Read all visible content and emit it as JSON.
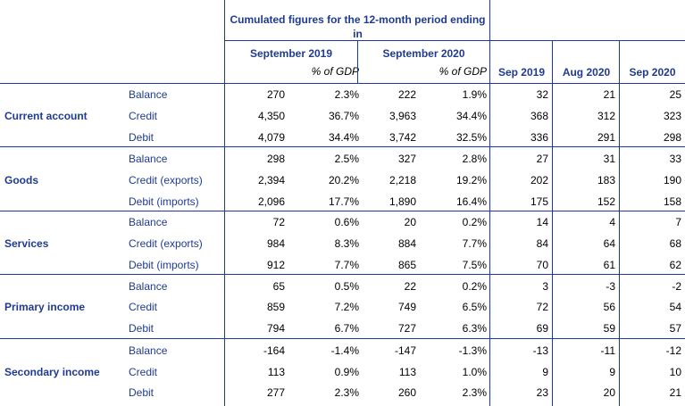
{
  "header": {
    "cumulated_title": "Cumulated figures for the 12-month period ending in",
    "periods": [
      "September 2019",
      "September 2020"
    ],
    "pct_label": "% of GDP",
    "months": [
      "Sep 2019",
      "Aug 2020",
      "Sep 2020"
    ]
  },
  "sections": [
    {
      "name": "Current account",
      "rows": [
        {
          "label": "Balance",
          "v19": "270",
          "p19": "2.3%",
          "v20": "222",
          "p20": "1.9%",
          "m1": "32",
          "m2": "21",
          "m3": "25"
        },
        {
          "label": "Credit",
          "v19": "4,350",
          "p19": "36.7%",
          "v20": "3,963",
          "p20": "34.4%",
          "m1": "368",
          "m2": "312",
          "m3": "323"
        },
        {
          "label": "Debit",
          "v19": "4,079",
          "p19": "34.4%",
          "v20": "3,742",
          "p20": "32.5%",
          "m1": "336",
          "m2": "291",
          "m3": "298"
        }
      ]
    },
    {
      "name": "Goods",
      "rows": [
        {
          "label": "Balance",
          "v19": "298",
          "p19": "2.5%",
          "v20": "327",
          "p20": "2.8%",
          "m1": "27",
          "m2": "31",
          "m3": "33"
        },
        {
          "label": "Credit (exports)",
          "v19": "2,394",
          "p19": "20.2%",
          "v20": "2,218",
          "p20": "19.2%",
          "m1": "202",
          "m2": "183",
          "m3": "190"
        },
        {
          "label": "Debit (imports)",
          "v19": "2,096",
          "p19": "17.7%",
          "v20": "1,890",
          "p20": "16.4%",
          "m1": "175",
          "m2": "152",
          "m3": "158"
        }
      ]
    },
    {
      "name": "Services",
      "rows": [
        {
          "label": "Balance",
          "v19": "72",
          "p19": "0.6%",
          "v20": "20",
          "p20": "0.2%",
          "m1": "14",
          "m2": "4",
          "m3": "7"
        },
        {
          "label": "Credit (exports)",
          "v19": "984",
          "p19": "8.3%",
          "v20": "884",
          "p20": "7.7%",
          "m1": "84",
          "m2": "64",
          "m3": "68"
        },
        {
          "label": "Debit (imports)",
          "v19": "912",
          "p19": "7.7%",
          "v20": "865",
          "p20": "7.5%",
          "m1": "70",
          "m2": "61",
          "m3": "62"
        }
      ]
    },
    {
      "name": "Primary income",
      "rows": [
        {
          "label": "Balance",
          "v19": "65",
          "p19": "0.5%",
          "v20": "22",
          "p20": "0.2%",
          "m1": "3",
          "m2": "-3",
          "m3": "-2"
        },
        {
          "label": "Credit",
          "v19": "859",
          "p19": "7.2%",
          "v20": "749",
          "p20": "6.5%",
          "m1": "72",
          "m2": "56",
          "m3": "54"
        },
        {
          "label": "Debit",
          "v19": "794",
          "p19": "6.7%",
          "v20": "727",
          "p20": "6.3%",
          "m1": "69",
          "m2": "59",
          "m3": "57"
        }
      ]
    },
    {
      "name": "Secondary income",
      "rows": [
        {
          "label": "Balance",
          "v19": "-164",
          "p19": "-1.4%",
          "v20": "-147",
          "p20": "-1.3%",
          "m1": "-13",
          "m2": "-11",
          "m3": "-12"
        },
        {
          "label": "Credit",
          "v19": "113",
          "p19": "0.9%",
          "v20": "113",
          "p20": "1.0%",
          "m1": "9",
          "m2": "9",
          "m3": "10"
        },
        {
          "label": "Debit",
          "v19": "277",
          "p19": "2.3%",
          "v20": "260",
          "p20": "2.3%",
          "m1": "23",
          "m2": "20",
          "m3": "21"
        }
      ]
    }
  ]
}
